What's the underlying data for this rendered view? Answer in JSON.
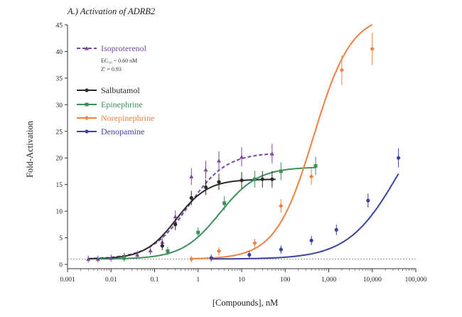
{
  "chart_data": {
    "type": "scatter",
    "title": "A.) Activation of ADRB2",
    "xlabel": "[Compounds], nM",
    "ylabel": "Fold-Activation",
    "x_scale": "log",
    "xlim": [
      0.001,
      100000
    ],
    "ylim": [
      0,
      45
    ],
    "x_ticks": [
      0.001,
      0.01,
      0.1,
      1,
      10,
      100,
      1000,
      10000,
      100000
    ],
    "x_tick_labels": [
      "0.001",
      "0.01",
      "0.1",
      "1",
      "10",
      "100",
      "1,000",
      "10,000",
      "100,000"
    ],
    "y_ticks": [
      0,
      5,
      10,
      15,
      20,
      25,
      30,
      35,
      40,
      45
    ],
    "y_tick_labels": [
      "0",
      "5",
      "10",
      "15",
      "20",
      "25",
      "30",
      "35",
      "40",
      "45"
    ],
    "baseline": 1,
    "grid": false,
    "legend_position": "top-left",
    "legend_note": {
      "line1": "EC₅₀ ~ 0.60 nM",
      "line2": "Z' = 0.93"
    },
    "series": [
      {
        "name": "Isoproterenol",
        "color": "#7a4a9e",
        "line_style": "dashed",
        "marker": "triangle",
        "x": [
          0.003,
          0.005,
          0.01,
          0.02,
          0.04,
          0.08,
          0.15,
          0.3,
          0.7,
          1.5,
          3,
          10,
          50
        ],
        "y": [
          1.0,
          1.0,
          1.2,
          1.5,
          1.8,
          2.6,
          4.2,
          9.0,
          16.5,
          17.8,
          19.5,
          20.2,
          20.8
        ],
        "fit": {
          "bottom": 1,
          "top": 21.0,
          "logEC50": -0.22,
          "hill": 1.0,
          "xmin": 0.003,
          "xmax": 50
        }
      },
      {
        "name": "Salbutamol",
        "color": "#2b2b2b",
        "line_style": "solid",
        "marker": "circle",
        "x": [
          0.15,
          0.3,
          0.7,
          1.5,
          3,
          10,
          30,
          50
        ],
        "y": [
          3.5,
          7.5,
          12.5,
          14.5,
          15.5,
          15.8,
          16.0,
          16.0
        ],
        "fit": {
          "bottom": 1,
          "top": 16.0,
          "logEC50": -0.5,
          "hill": 1.2,
          "xmin": 0.003,
          "xmax": 60
        }
      },
      {
        "name": "Epinephrine",
        "color": "#3f8f5b",
        "line_style": "solid",
        "marker": "square",
        "x": [
          0.02,
          0.2,
          1,
          4,
          20,
          80,
          500
        ],
        "y": [
          1.2,
          2.5,
          6.0,
          11.5,
          16.0,
          17.5,
          18.5
        ],
        "fit": {
          "bottom": 1,
          "top": 18.3,
          "logEC50": 0.5,
          "hill": 1.0,
          "xmin": 0.005,
          "xmax": 500
        }
      },
      {
        "name": "Norepinephrine",
        "color": "#f08040",
        "line_style": "solid",
        "marker": "diamond",
        "x": [
          0.7,
          3,
          20,
          80,
          400,
          2000,
          10000
        ],
        "y": [
          1.0,
          2.5,
          4.0,
          11.0,
          16.5,
          36.5,
          40.5
        ],
        "fit": {
          "bottom": 1,
          "top": 47.0,
          "logEC50": 2.65,
          "hill": 1.0,
          "xmin": 0.7,
          "xmax": 10000
        }
      },
      {
        "name": "Denopamine",
        "color": "#3a42a0",
        "line_style": "solid",
        "marker": "circle",
        "x": [
          2,
          15,
          80,
          400,
          1500,
          8000,
          40000
        ],
        "y": [
          1.2,
          1.8,
          2.8,
          4.5,
          6.5,
          12.0,
          20.0
        ],
        "fit": {
          "bottom": 1,
          "top": 33.0,
          "logEC50": 4.6,
          "hill": 0.75,
          "xmin": 2,
          "xmax": 40000
        }
      }
    ]
  }
}
